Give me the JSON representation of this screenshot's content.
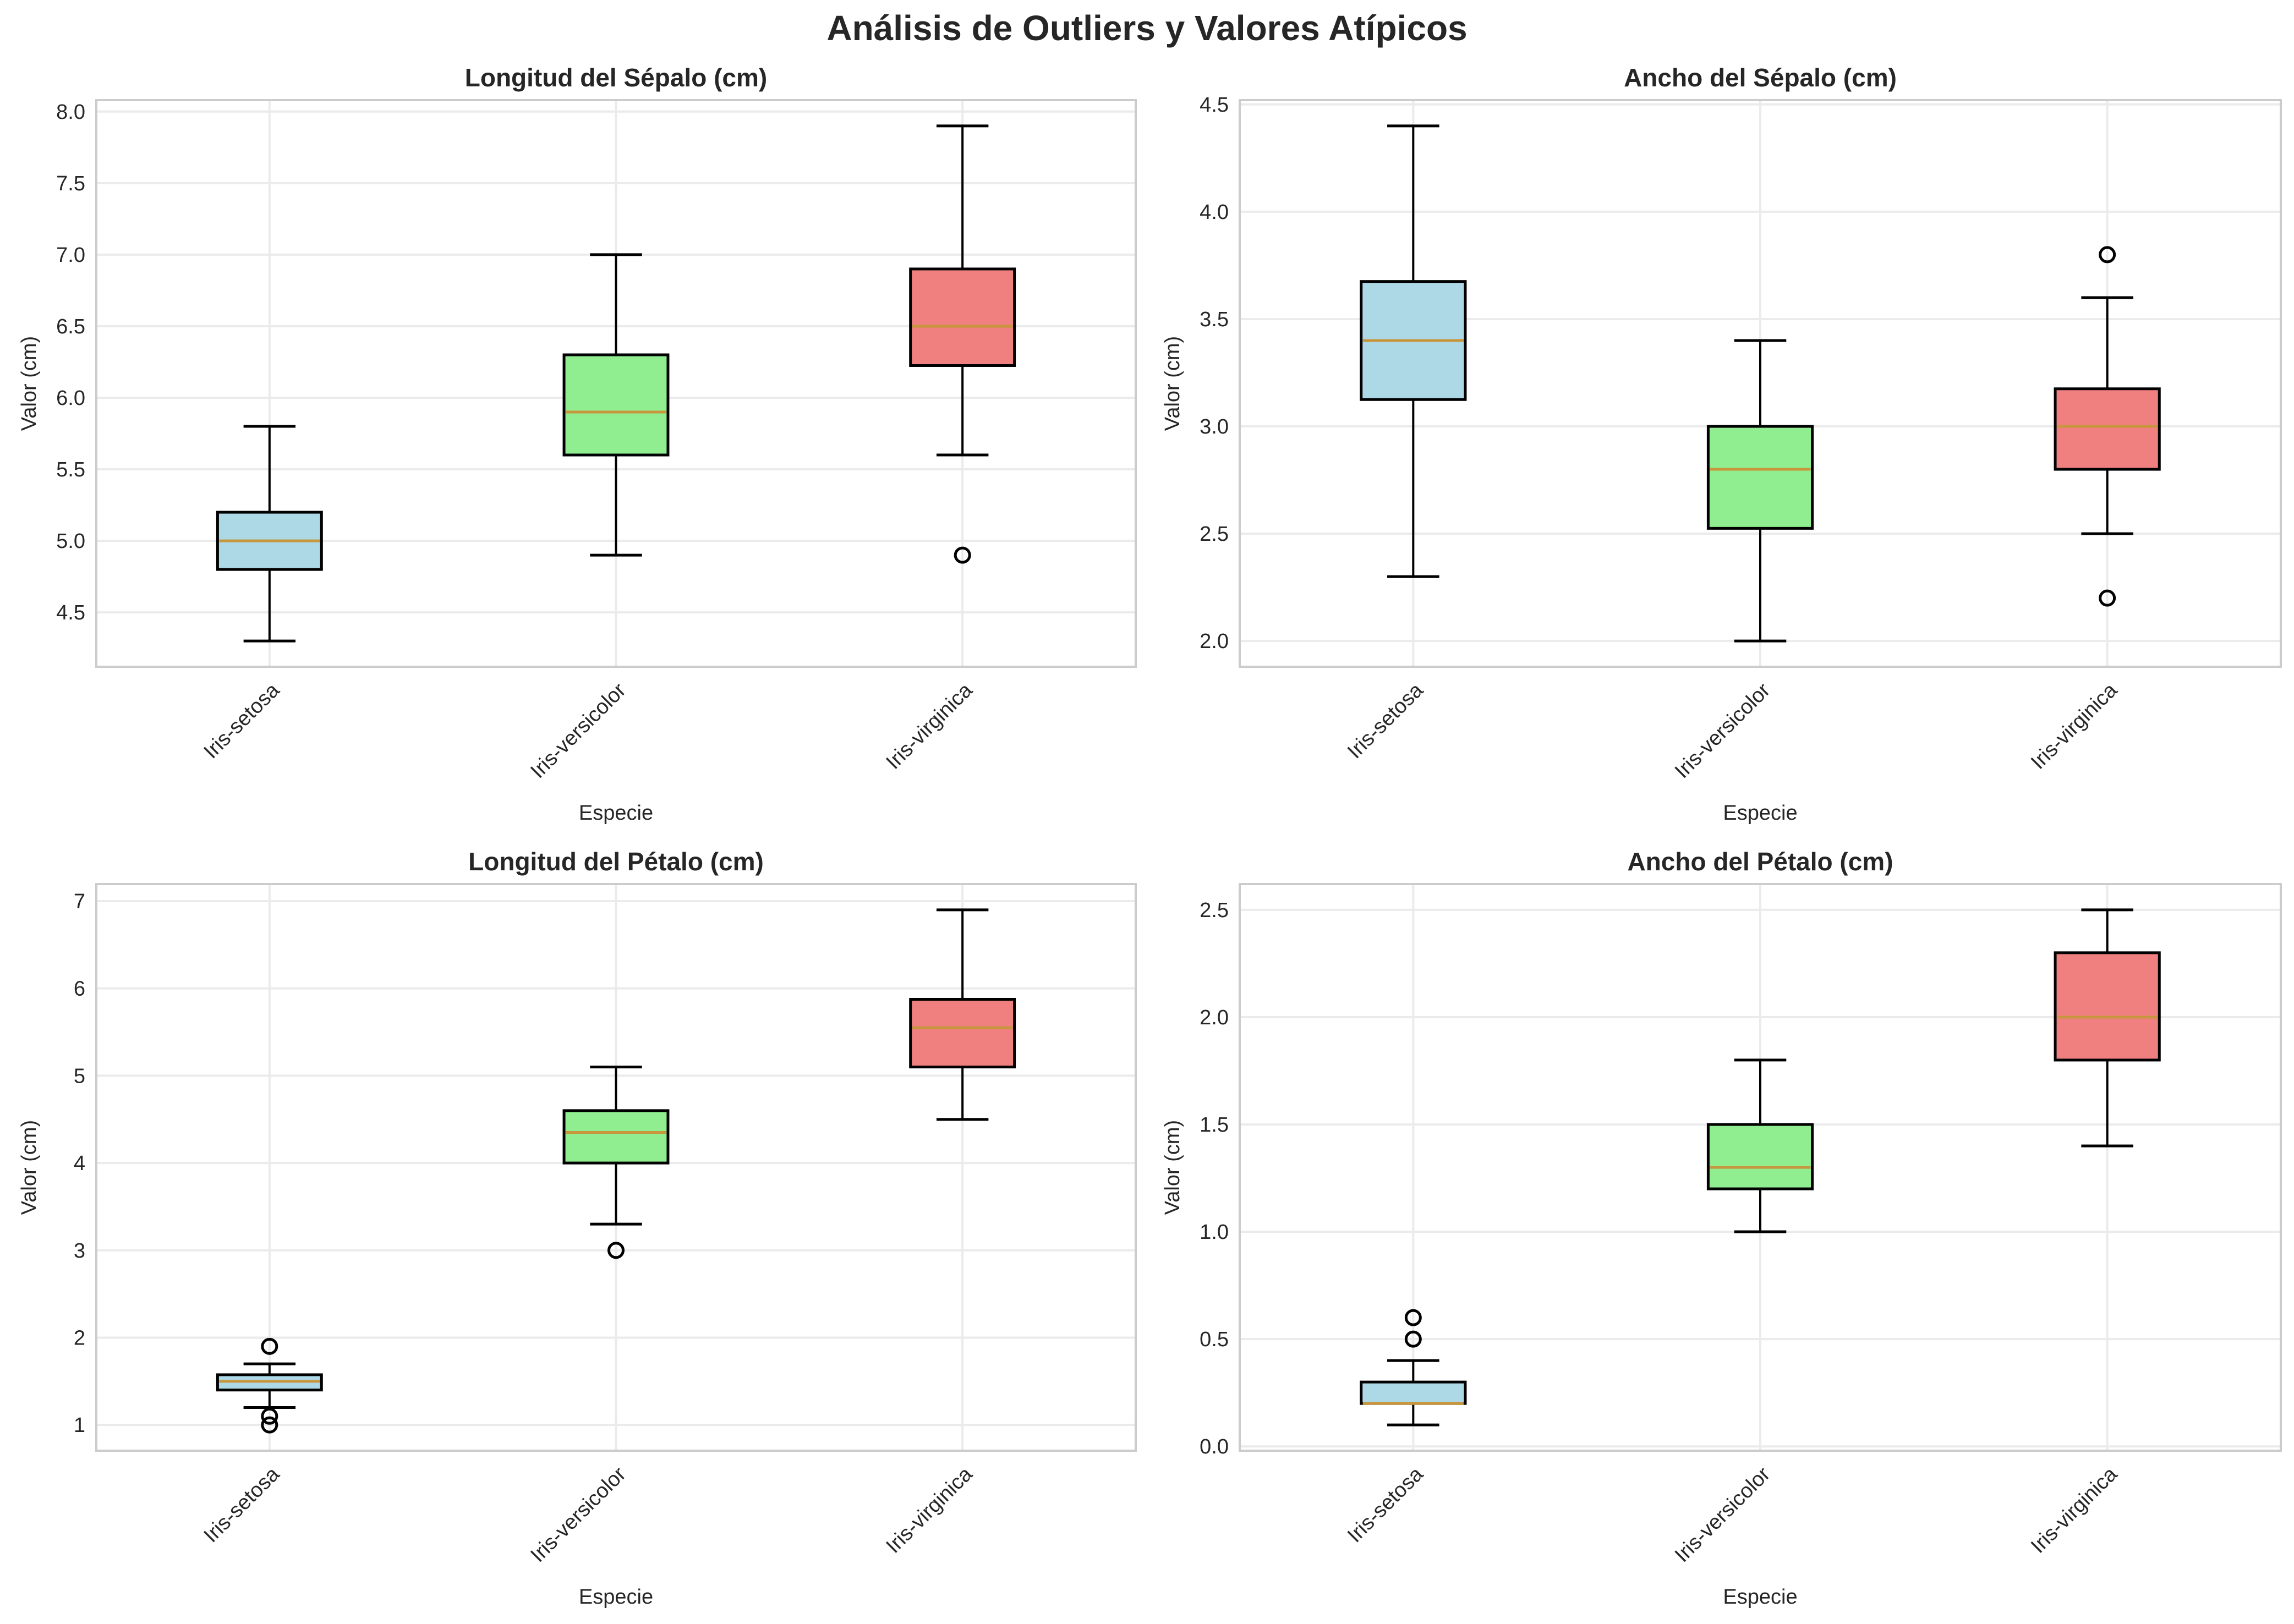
{
  "figure": {
    "title": "Análisis de Outliers y Valores Atípicos"
  },
  "style": {
    "box_colors": [
      "#add8e6",
      "#90ee90",
      "#f08080"
    ],
    "median_color": "#c8963c",
    "grid_color": "#ebebeb",
    "frame_color": "#cccccc"
  },
  "chart_data": [
    {
      "type": "box",
      "title": "Longitud del Sépalo (cm)",
      "xlabel": "Especie",
      "ylabel": "Valor (cm)",
      "categories": [
        "Iris-setosa",
        "Iris-versicolor",
        "Iris-virginica"
      ],
      "ylim": [
        4.12,
        8.08
      ],
      "yticks": [
        4.5,
        5.0,
        5.5,
        6.0,
        6.5,
        7.0,
        7.5,
        8.0
      ],
      "ytick_labels": [
        "4.5",
        "5.0",
        "5.5",
        "6.0",
        "6.5",
        "7.0",
        "7.5",
        "8.0"
      ],
      "grid": true,
      "boxes": [
        {
          "whislo": 4.3,
          "q1": 4.8,
          "med": 5.0,
          "q3": 5.2,
          "whishi": 5.8,
          "fliers": []
        },
        {
          "whislo": 4.9,
          "q1": 5.6,
          "med": 5.9,
          "q3": 6.3,
          "whishi": 7.0,
          "fliers": []
        },
        {
          "whislo": 5.6,
          "q1": 6.225,
          "med": 6.5,
          "q3": 6.9,
          "whishi": 7.9,
          "fliers": [
            4.9
          ]
        }
      ]
    },
    {
      "type": "box",
      "title": "Ancho del Sépalo (cm)",
      "xlabel": "Especie",
      "ylabel": "Valor (cm)",
      "categories": [
        "Iris-setosa",
        "Iris-versicolor",
        "Iris-virginica"
      ],
      "ylim": [
        1.88,
        4.52
      ],
      "yticks": [
        2.0,
        2.5,
        3.0,
        3.5,
        4.0,
        4.5
      ],
      "ytick_labels": [
        "2.0",
        "2.5",
        "3.0",
        "3.5",
        "4.0",
        "4.5"
      ],
      "grid": true,
      "boxes": [
        {
          "whislo": 2.3,
          "q1": 3.125,
          "med": 3.4,
          "q3": 3.675,
          "whishi": 4.4,
          "fliers": []
        },
        {
          "whislo": 2.0,
          "q1": 2.525,
          "med": 2.8,
          "q3": 3.0,
          "whishi": 3.4,
          "fliers": []
        },
        {
          "whislo": 2.5,
          "q1": 2.8,
          "med": 3.0,
          "q3": 3.175,
          "whishi": 3.6,
          "fliers": [
            3.8,
            2.2
          ]
        }
      ]
    },
    {
      "type": "box",
      "title": "Longitud del Pétalo (cm)",
      "xlabel": "Especie",
      "ylabel": "Valor (cm)",
      "categories": [
        "Iris-setosa",
        "Iris-versicolor",
        "Iris-virginica"
      ],
      "ylim": [
        0.705,
        7.195
      ],
      "yticks": [
        1,
        2,
        3,
        4,
        5,
        6,
        7
      ],
      "ytick_labels": [
        "1",
        "2",
        "3",
        "4",
        "5",
        "6",
        "7"
      ],
      "grid": true,
      "boxes": [
        {
          "whislo": 1.2,
          "q1": 1.4,
          "med": 1.5,
          "q3": 1.575,
          "whishi": 1.7,
          "fliers": [
            1.9,
            1.1,
            1.0
          ]
        },
        {
          "whislo": 3.3,
          "q1": 4.0,
          "med": 4.35,
          "q3": 4.6,
          "whishi": 5.1,
          "fliers": [
            3.0
          ]
        },
        {
          "whislo": 4.5,
          "q1": 5.1,
          "med": 5.55,
          "q3": 5.875,
          "whishi": 6.9,
          "fliers": []
        }
      ]
    },
    {
      "type": "box",
      "title": "Ancho del Pétalo (cm)",
      "xlabel": "Especie",
      "ylabel": "Valor (cm)",
      "categories": [
        "Iris-setosa",
        "Iris-versicolor",
        "Iris-virginica"
      ],
      "ylim": [
        -0.02,
        2.62
      ],
      "yticks": [
        0.0,
        0.5,
        1.0,
        1.5,
        2.0,
        2.5
      ],
      "ytick_labels": [
        "0.0",
        "0.5",
        "1.0",
        "1.5",
        "2.0",
        "2.5"
      ],
      "grid": true,
      "boxes": [
        {
          "whislo": 0.1,
          "q1": 0.2,
          "med": 0.2,
          "q3": 0.3,
          "whishi": 0.4,
          "fliers": [
            0.5,
            0.6
          ]
        },
        {
          "whislo": 1.0,
          "q1": 1.2,
          "med": 1.3,
          "q3": 1.5,
          "whishi": 1.8,
          "fliers": []
        },
        {
          "whislo": 1.4,
          "q1": 1.8,
          "med": 2.0,
          "q3": 2.3,
          "whishi": 2.5,
          "fliers": []
        }
      ]
    }
  ]
}
